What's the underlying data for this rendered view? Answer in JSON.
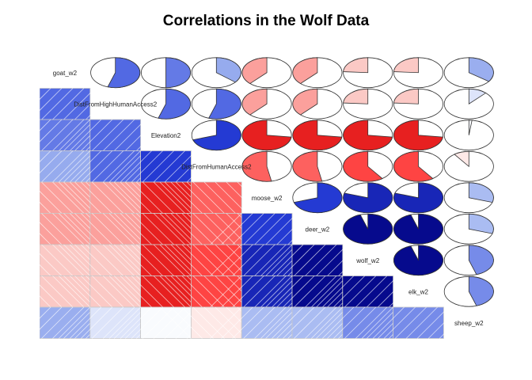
{
  "chart_data": {
    "type": "heatmap",
    "title": "Correlations in the Wolf Data",
    "variables": [
      "goat_w2",
      "DistFromHighHumanAccess2",
      "Elevation2",
      "DistFromHumanAccess2",
      "moose_w2",
      "deer_w2",
      "wolf_w2",
      "elk_w2",
      "sheep_w2"
    ],
    "lower_panel": "shade",
    "upper_panel": "pie",
    "colors": {
      "positive": "#00007F",
      "negative": "#FF0000"
    },
    "matrix": [
      [
        1.0,
        0.55,
        0.5,
        0.36,
        -0.38,
        -0.38,
        -0.24,
        -0.24,
        0.35
      ],
      [
        0.55,
        1.0,
        0.55,
        0.55,
        -0.38,
        -0.38,
        -0.24,
        -0.24,
        0.12
      ],
      [
        0.5,
        0.55,
        1.0,
        0.7,
        -0.73,
        -0.73,
        -0.73,
        -0.73,
        0.02
      ],
      [
        0.36,
        0.55,
        0.7,
        1.0,
        -0.53,
        -0.53,
        -0.6,
        -0.6,
        -0.1
      ],
      [
        -0.38,
        -0.38,
        -0.73,
        -0.53,
        1.0,
        0.7,
        0.8,
        0.8,
        0.3
      ],
      [
        -0.38,
        -0.38,
        -0.73,
        -0.53,
        0.7,
        1.0,
        0.95,
        0.95,
        0.3
      ],
      [
        -0.24,
        -0.24,
        -0.73,
        -0.6,
        0.8,
        0.95,
        1.0,
        0.95,
        0.45
      ],
      [
        -0.24,
        -0.24,
        -0.73,
        -0.6,
        0.8,
        0.95,
        0.95,
        1.0,
        0.45
      ],
      [
        0.35,
        0.12,
        0.02,
        -0.1,
        0.3,
        0.3,
        0.45,
        0.45,
        1.0
      ]
    ]
  }
}
